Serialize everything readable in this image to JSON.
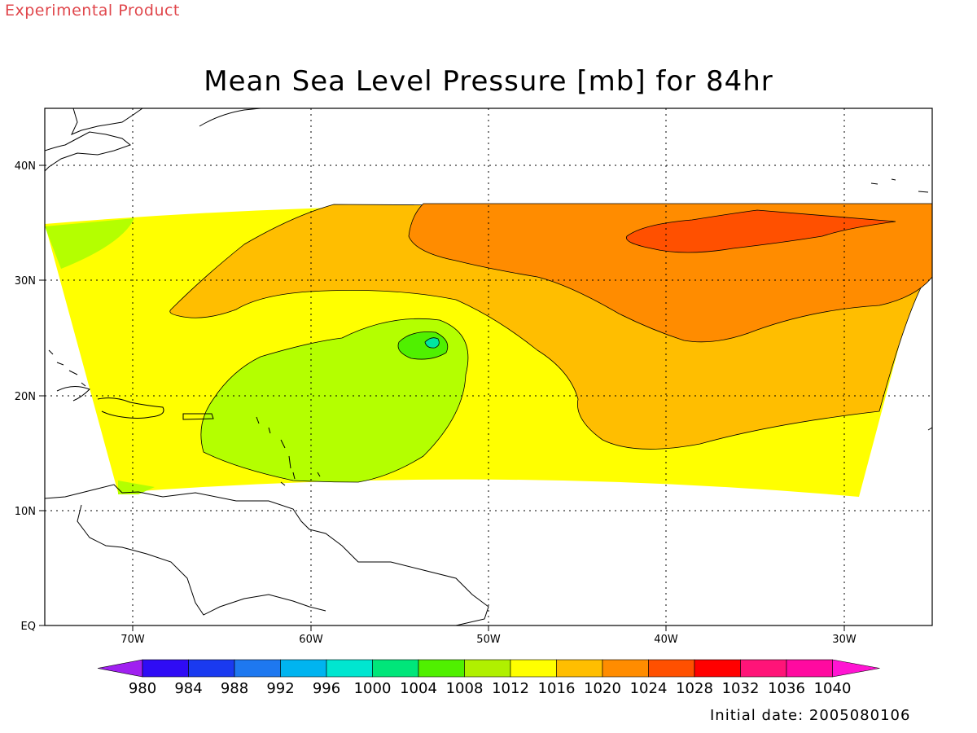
{
  "watermark": "Experimental Product",
  "title": "Mean Sea Level Pressure [mb] for 84hr",
  "initial_date": "Initial date: 2005080106",
  "map": {
    "lon_labels": [
      "70W",
      "60W",
      "50W",
      "40W",
      "30W"
    ],
    "lat_labels": [
      "40N",
      "30N",
      "20N",
      "10N",
      "EQ"
    ]
  },
  "colorbar": {
    "labels": [
      "980",
      "984",
      "988",
      "992",
      "996",
      "1000",
      "1004",
      "1008",
      "1012",
      "1016",
      "1020",
      "1024",
      "1028",
      "1032",
      "1036",
      "1040"
    ],
    "colors": [
      "#a020f0",
      "#2f0cf5",
      "#1a3af0",
      "#1e78f0",
      "#00b4f0",
      "#00e6d0",
      "#00e67a",
      "#50f000",
      "#b0f000",
      "#ffff00",
      "#ffbe00",
      "#ff8c00",
      "#ff5000",
      "#ff0000",
      "#ff1478",
      "#ff0aa0",
      "#ff14d2"
    ]
  },
  "pressure_levels": {
    "1008": "#b4ff00",
    "1012": "#ffff00",
    "1016": "#ffbe00",
    "1020": "#ff8c00",
    "1024": "#ff5000",
    "1004": "#50f000",
    "1000": "#00e6a0"
  }
}
